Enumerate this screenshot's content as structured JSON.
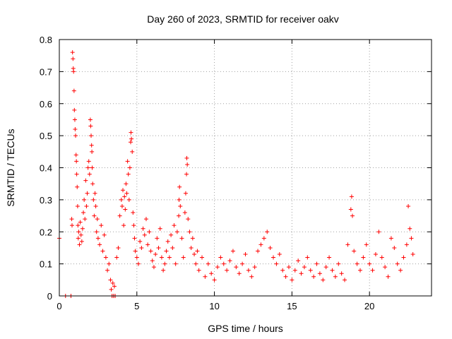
{
  "chart_data": {
    "type": "scatter",
    "title": "Day 260 of 2023, SRMTID for receiver oakv",
    "xlabel": "GPS time / hours",
    "ylabel": "SRMTID / TECUs",
    "xlim": [
      0,
      24
    ],
    "ylim": [
      0,
      0.8
    ],
    "xticks": [
      0,
      5,
      10,
      15,
      20
    ],
    "xtick_labels": [
      "0",
      "5",
      "10",
      "15",
      "20"
    ],
    "yticks": [
      0,
      0.1,
      0.2,
      0.3,
      0.4,
      0.5,
      0.6,
      0.7,
      0.8
    ],
    "ytick_labels": [
      "0",
      "0.1",
      "0.2",
      "0.3",
      "0.4",
      "0.5",
      "0.6",
      "0.7",
      "0.8"
    ],
    "grid": true,
    "marker": "plus",
    "color": "#ff0000",
    "series": [
      {
        "name": "oakv",
        "points": [
          [
            0.0,
            0.18
          ],
          [
            0.4,
            0.0
          ],
          [
            0.75,
            0.0
          ],
          [
            0.8,
            0.24
          ],
          [
            0.82,
            0.22
          ],
          [
            0.85,
            0.76
          ],
          [
            0.88,
            0.74
          ],
          [
            0.9,
            0.71
          ],
          [
            0.92,
            0.7
          ],
          [
            0.95,
            0.64
          ],
          [
            0.97,
            0.58
          ],
          [
            1.0,
            0.55
          ],
          [
            1.02,
            0.52
          ],
          [
            1.05,
            0.5
          ],
          [
            1.08,
            0.44
          ],
          [
            1.1,
            0.42
          ],
          [
            1.12,
            0.38
          ],
          [
            1.15,
            0.34
          ],
          [
            1.18,
            0.28
          ],
          [
            1.2,
            0.22
          ],
          [
            1.22,
            0.18
          ],
          [
            1.25,
            0.2
          ],
          [
            1.3,
            0.16
          ],
          [
            1.35,
            0.23
          ],
          [
            1.4,
            0.19
          ],
          [
            1.45,
            0.17
          ],
          [
            1.5,
            0.21
          ],
          [
            1.55,
            0.26
          ],
          [
            1.6,
            0.3
          ],
          [
            1.65,
            0.24
          ],
          [
            1.7,
            0.36
          ],
          [
            1.75,
            0.28
          ],
          [
            1.8,
            0.32
          ],
          [
            1.85,
            0.4
          ],
          [
            1.9,
            0.42
          ],
          [
            1.95,
            0.38
          ],
          [
            2.0,
            0.55
          ],
          [
            2.02,
            0.53
          ],
          [
            2.05,
            0.5
          ],
          [
            2.08,
            0.47
          ],
          [
            2.1,
            0.45
          ],
          [
            2.12,
            0.4
          ],
          [
            2.15,
            0.35
          ],
          [
            2.2,
            0.3
          ],
          [
            2.25,
            0.25
          ],
          [
            2.3,
            0.32
          ],
          [
            2.35,
            0.28
          ],
          [
            2.4,
            0.2
          ],
          [
            2.45,
            0.24
          ],
          [
            2.5,
            0.18
          ],
          [
            2.6,
            0.16
          ],
          [
            2.7,
            0.22
          ],
          [
            2.8,
            0.14
          ],
          [
            2.9,
            0.19
          ],
          [
            3.0,
            0.12
          ],
          [
            3.1,
            0.08
          ],
          [
            3.2,
            0.1
          ],
          [
            3.3,
            0.05
          ],
          [
            3.35,
            0.02
          ],
          [
            3.4,
            0.0
          ],
          [
            3.45,
            0.04
          ],
          [
            3.5,
            0.0
          ],
          [
            3.55,
            0.03
          ],
          [
            3.6,
            0.0
          ],
          [
            3.7,
            0.12
          ],
          [
            3.8,
            0.15
          ],
          [
            3.9,
            0.25
          ],
          [
            4.0,
            0.3
          ],
          [
            4.05,
            0.28
          ],
          [
            4.1,
            0.33
          ],
          [
            4.15,
            0.22
          ],
          [
            4.2,
            0.31
          ],
          [
            4.25,
            0.27
          ],
          [
            4.3,
            0.35
          ],
          [
            4.35,
            0.32
          ],
          [
            4.4,
            0.42
          ],
          [
            4.45,
            0.38
          ],
          [
            4.5,
            0.3
          ],
          [
            4.55,
            0.4
          ],
          [
            4.6,
            0.48
          ],
          [
            4.62,
            0.51
          ],
          [
            4.65,
            0.49
          ],
          [
            4.7,
            0.45
          ],
          [
            4.75,
            0.26
          ],
          [
            4.8,
            0.22
          ],
          [
            4.85,
            0.18
          ],
          [
            4.9,
            0.14
          ],
          [
            5.0,
            0.12
          ],
          [
            5.1,
            0.1
          ],
          [
            5.2,
            0.17
          ],
          [
            5.3,
            0.15
          ],
          [
            5.4,
            0.21
          ],
          [
            5.5,
            0.19
          ],
          [
            5.6,
            0.24
          ],
          [
            5.7,
            0.16
          ],
          [
            5.8,
            0.2
          ],
          [
            5.9,
            0.14
          ],
          [
            6.0,
            0.11
          ],
          [
            6.1,
            0.09
          ],
          [
            6.2,
            0.13
          ],
          [
            6.3,
            0.18
          ],
          [
            6.4,
            0.15
          ],
          [
            6.5,
            0.21
          ],
          [
            6.6,
            0.12
          ],
          [
            6.7,
            0.08
          ],
          [
            6.8,
            0.1
          ],
          [
            6.9,
            0.14
          ],
          [
            7.0,
            0.17
          ],
          [
            7.1,
            0.12
          ],
          [
            7.2,
            0.19
          ],
          [
            7.3,
            0.15
          ],
          [
            7.4,
            0.22
          ],
          [
            7.5,
            0.1
          ],
          [
            7.6,
            0.2
          ],
          [
            7.7,
            0.25
          ],
          [
            7.72,
            0.3
          ],
          [
            7.75,
            0.34
          ],
          [
            7.8,
            0.28
          ],
          [
            7.9,
            0.18
          ],
          [
            8.0,
            0.12
          ],
          [
            8.1,
            0.26
          ],
          [
            8.15,
            0.32
          ],
          [
            8.2,
            0.38
          ],
          [
            8.22,
            0.43
          ],
          [
            8.25,
            0.41
          ],
          [
            8.3,
            0.24
          ],
          [
            8.4,
            0.2
          ],
          [
            8.5,
            0.15
          ],
          [
            8.6,
            0.18
          ],
          [
            8.7,
            0.13
          ],
          [
            8.8,
            0.1
          ],
          [
            8.9,
            0.14
          ],
          [
            9.0,
            0.08
          ],
          [
            9.2,
            0.12
          ],
          [
            9.4,
            0.06
          ],
          [
            9.6,
            0.1
          ],
          [
            9.8,
            0.07
          ],
          [
            10.0,
            0.05
          ],
          [
            10.2,
            0.09
          ],
          [
            10.4,
            0.12
          ],
          [
            10.6,
            0.1
          ],
          [
            10.8,
            0.08
          ],
          [
            11.0,
            0.11
          ],
          [
            11.2,
            0.14
          ],
          [
            11.4,
            0.09
          ],
          [
            11.6,
            0.07
          ],
          [
            11.8,
            0.1
          ],
          [
            12.0,
            0.13
          ],
          [
            12.2,
            0.08
          ],
          [
            12.4,
            0.06
          ],
          [
            12.6,
            0.09
          ],
          [
            12.8,
            0.14
          ],
          [
            13.0,
            0.16
          ],
          [
            13.2,
            0.18
          ],
          [
            13.4,
            0.2
          ],
          [
            13.6,
            0.15
          ],
          [
            13.8,
            0.12
          ],
          [
            14.0,
            0.1
          ],
          [
            14.2,
            0.13
          ],
          [
            14.4,
            0.08
          ],
          [
            14.6,
            0.06
          ],
          [
            14.8,
            0.09
          ],
          [
            15.0,
            0.05
          ],
          [
            15.2,
            0.08
          ],
          [
            15.4,
            0.11
          ],
          [
            15.6,
            0.07
          ],
          [
            15.8,
            0.09
          ],
          [
            16.0,
            0.12
          ],
          [
            16.2,
            0.08
          ],
          [
            16.4,
            0.06
          ],
          [
            16.6,
            0.1
          ],
          [
            16.8,
            0.07
          ],
          [
            17.0,
            0.05
          ],
          [
            17.2,
            0.09
          ],
          [
            17.4,
            0.12
          ],
          [
            17.6,
            0.08
          ],
          [
            17.8,
            0.06
          ],
          [
            18.0,
            0.1
          ],
          [
            18.2,
            0.07
          ],
          [
            18.4,
            0.05
          ],
          [
            18.6,
            0.16
          ],
          [
            18.8,
            0.27
          ],
          [
            18.85,
            0.31
          ],
          [
            18.9,
            0.25
          ],
          [
            19.0,
            0.14
          ],
          [
            19.2,
            0.1
          ],
          [
            19.4,
            0.08
          ],
          [
            19.6,
            0.12
          ],
          [
            19.8,
            0.16
          ],
          [
            20.0,
            0.1
          ],
          [
            20.2,
            0.08
          ],
          [
            20.4,
            0.13
          ],
          [
            20.6,
            0.2
          ],
          [
            20.8,
            0.12
          ],
          [
            21.0,
            0.09
          ],
          [
            21.2,
            0.06
          ],
          [
            21.4,
            0.18
          ],
          [
            21.6,
            0.15
          ],
          [
            21.8,
            0.1
          ],
          [
            22.0,
            0.08
          ],
          [
            22.2,
            0.12
          ],
          [
            22.4,
            0.16
          ],
          [
            22.5,
            0.28
          ],
          [
            22.6,
            0.21
          ],
          [
            22.7,
            0.18
          ],
          [
            22.8,
            0.13
          ]
        ]
      }
    ]
  }
}
